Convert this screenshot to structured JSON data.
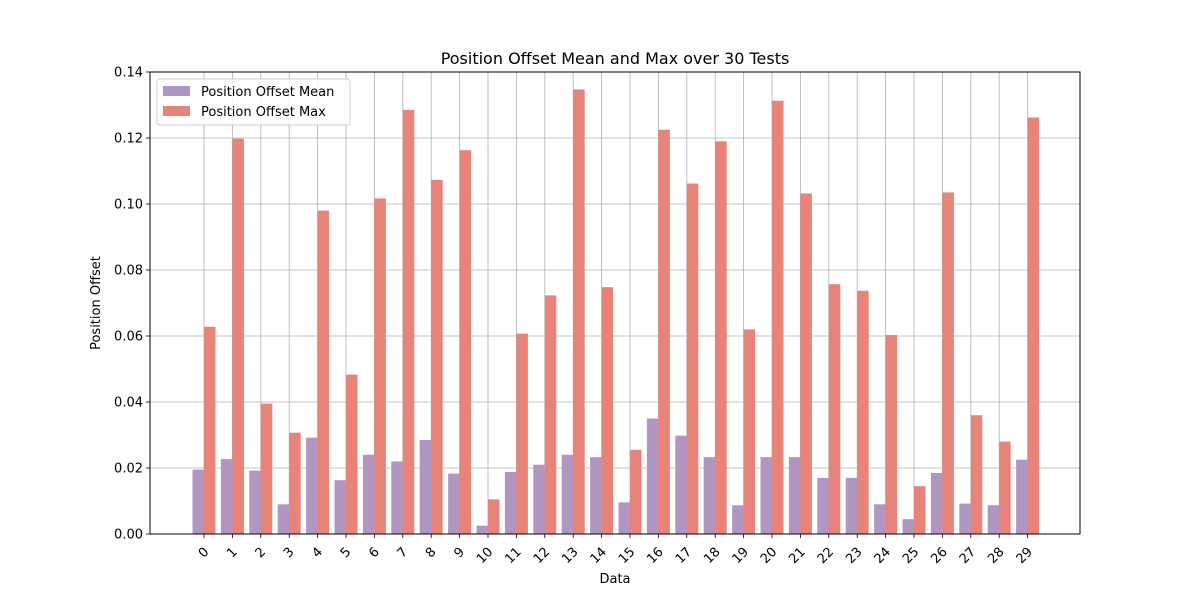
{
  "chart_data": {
    "type": "bar",
    "title": "Position Offset Mean and Max over 30 Tests",
    "xlabel": "Data",
    "ylabel": "Position Offset",
    "ylim": [
      0,
      0.14
    ],
    "yticks": [
      0.0,
      0.02,
      0.04,
      0.06,
      0.08,
      0.1,
      0.12,
      0.14
    ],
    "ytick_labels": [
      "0.00",
      "0.02",
      "0.04",
      "0.06",
      "0.08",
      "0.10",
      "0.12",
      "0.14"
    ],
    "grid": true,
    "legend_position": "upper-left",
    "categories": [
      "0",
      "1",
      "2",
      "3",
      "4",
      "5",
      "6",
      "7",
      "8",
      "9",
      "10",
      "11",
      "12",
      "13",
      "14",
      "15",
      "16",
      "17",
      "18",
      "19",
      "20",
      "21",
      "22",
      "23",
      "24",
      "25",
      "26",
      "27",
      "28",
      "29"
    ],
    "series": [
      {
        "name": "Position Offset Mean",
        "color": "#b296c2",
        "values": [
          0.0195,
          0.0227,
          0.0192,
          0.009,
          0.0292,
          0.0163,
          0.024,
          0.022,
          0.0285,
          0.0183,
          0.0025,
          0.0188,
          0.021,
          0.024,
          0.0233,
          0.0096,
          0.035,
          0.0298,
          0.0233,
          0.0087,
          0.0233,
          0.0233,
          0.017,
          0.017,
          0.009,
          0.0045,
          0.0185,
          0.0092,
          0.0087,
          0.0225
        ]
      },
      {
        "name": "Position Offset Max",
        "color": "#e8837a",
        "values": [
          0.0628,
          0.1198,
          0.0395,
          0.0307,
          0.098,
          0.0483,
          0.1017,
          0.1285,
          0.1073,
          0.1163,
          0.0105,
          0.0607,
          0.0723,
          0.1347,
          0.0748,
          0.0255,
          0.1225,
          0.1062,
          0.119,
          0.062,
          0.1313,
          0.1032,
          0.0757,
          0.0737,
          0.0603,
          0.0145,
          0.1035,
          0.036,
          0.028,
          0.1262
        ]
      }
    ]
  }
}
